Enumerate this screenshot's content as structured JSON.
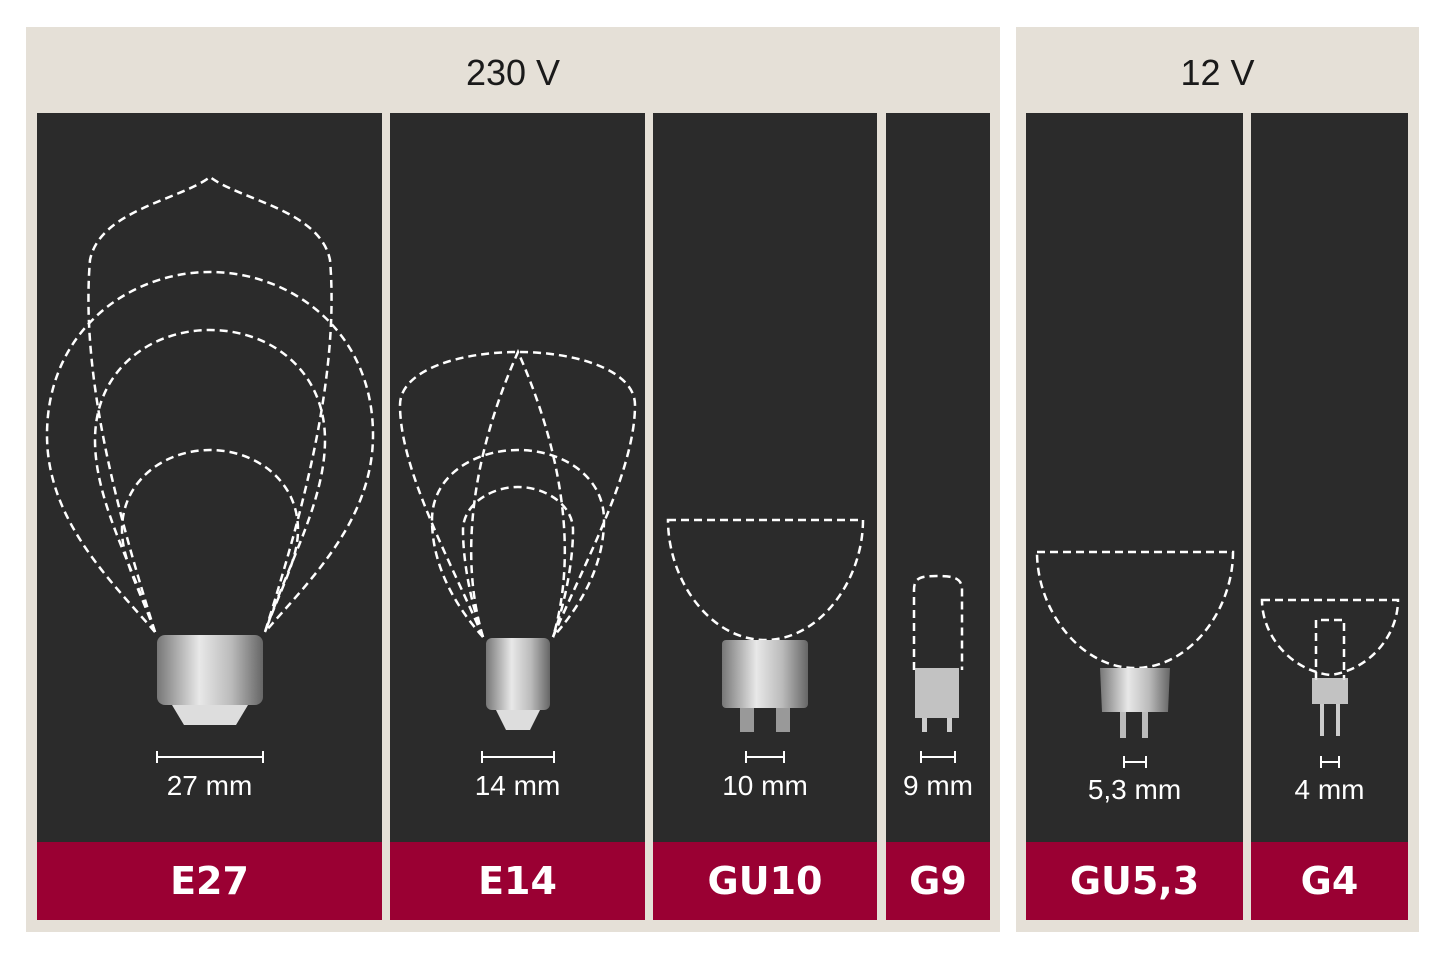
{
  "colors": {
    "panel": "#e5e0d7",
    "column": "#2b2b2b",
    "band": "#9a0033",
    "outline": "#ffffff"
  },
  "groups": [
    {
      "voltage": "230 V",
      "sockets": [
        {
          "name": "E27",
          "size": "27 mm"
        },
        {
          "name": "E14",
          "size": "14 mm"
        },
        {
          "name": "GU10",
          "size": "10 mm"
        },
        {
          "name": "G9",
          "size": "9 mm"
        }
      ]
    },
    {
      "voltage": "12 V",
      "sockets": [
        {
          "name": "GU5,3",
          "size": "5,3 mm"
        },
        {
          "name": "G4",
          "size": "4 mm"
        }
      ]
    }
  ]
}
